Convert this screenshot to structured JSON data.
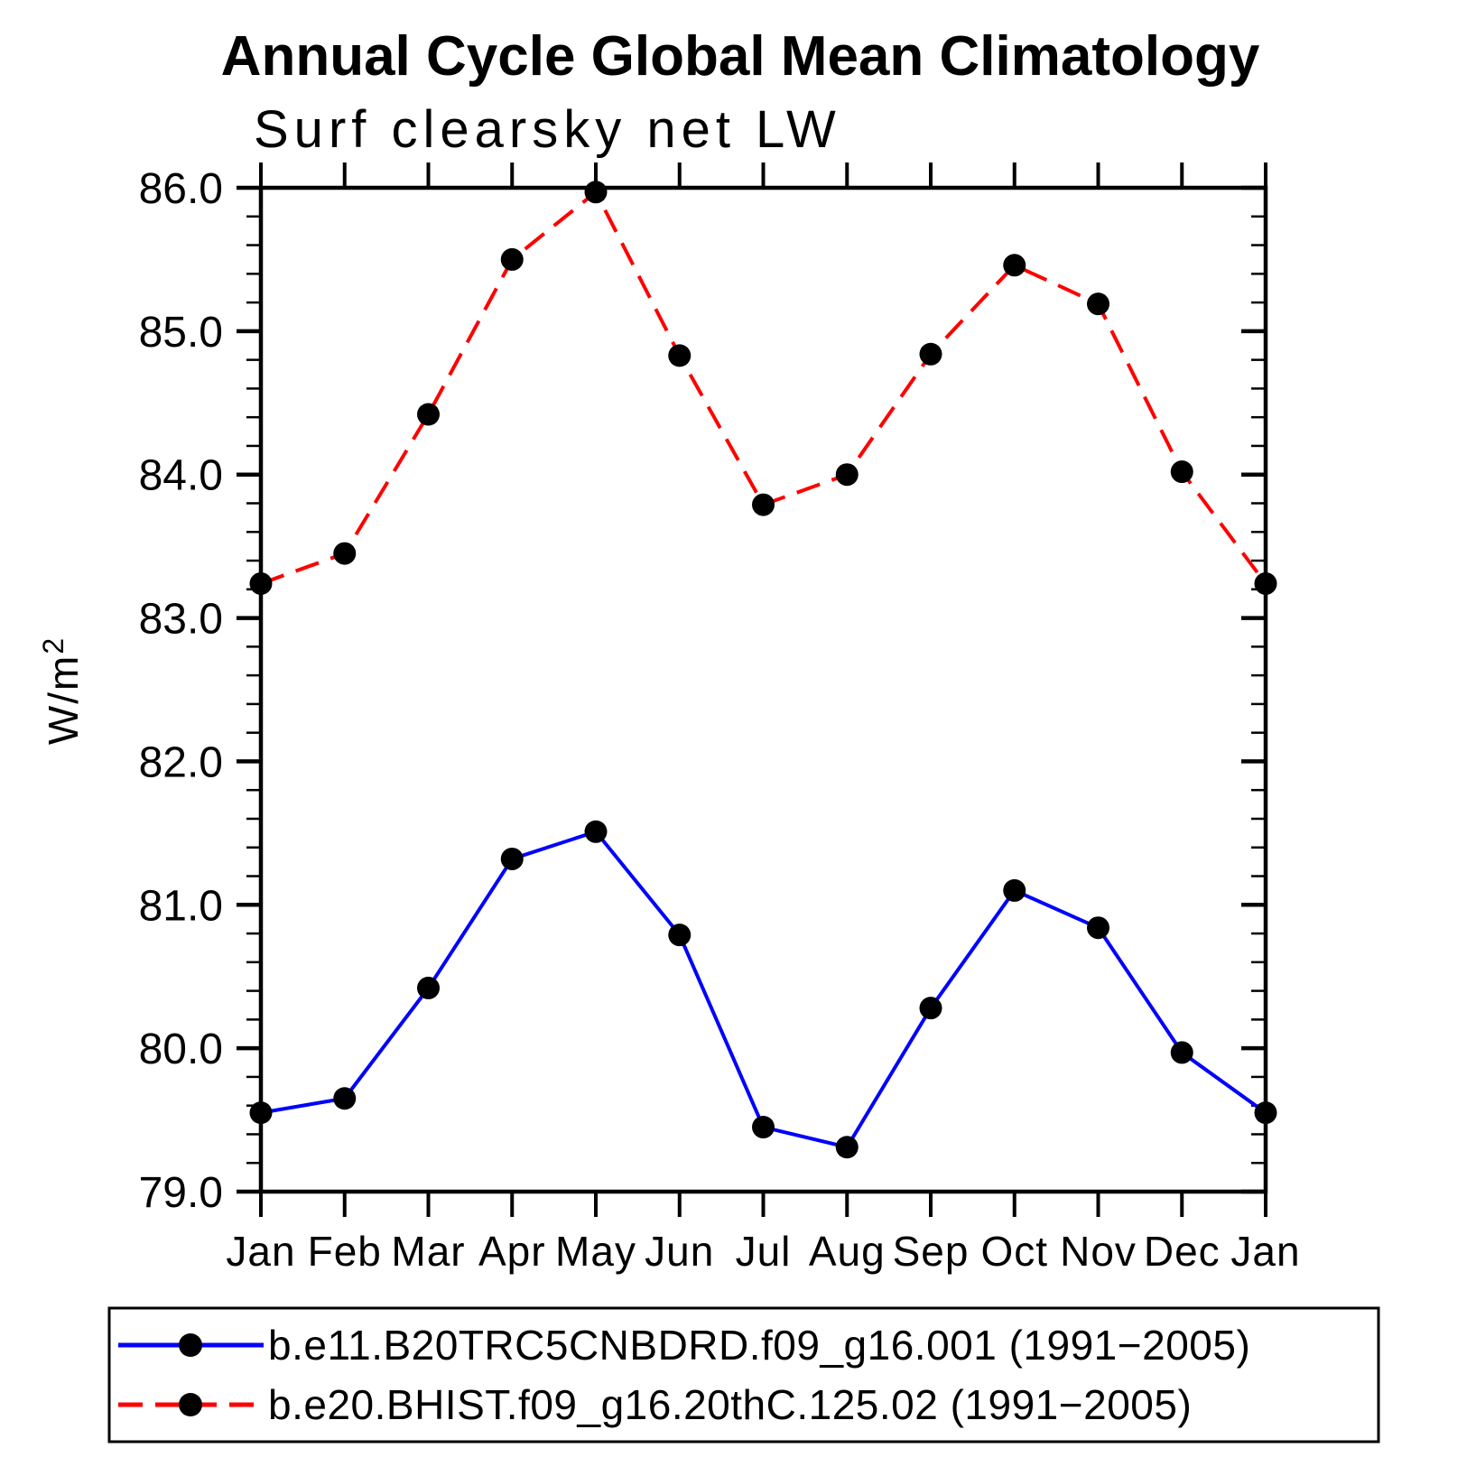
{
  "title": "Annual Cycle Global Mean Climatology",
  "subtitle": "Surf clearsky net LW",
  "chart_data": {
    "type": "line",
    "title": "Annual Cycle Global Mean Climatology",
    "subtitle": "Surf clearsky net LW",
    "xlabel": "",
    "ylabel": "W/m²",
    "ylabel_base": "W/m",
    "ylabel_exponent": "2",
    "x_tick_labels": [
      "Jan",
      "Feb",
      "Mar",
      "Apr",
      "May",
      "Jun",
      "Jul",
      "Aug",
      "Sep",
      "Oct",
      "Nov",
      "Dec",
      "Jan"
    ],
    "ylim": [
      79.0,
      86.0
    ],
    "y_major_step": 1.0,
    "y_minor_step": 0.2,
    "y_tick_values": [
      79.0,
      80.0,
      81.0,
      82.0,
      83.0,
      84.0,
      85.0,
      86.0
    ],
    "y_tick_labels": [
      "79.0",
      "80.0",
      "81.0",
      "82.0",
      "83.0",
      "84.0",
      "85.0",
      "86.0"
    ],
    "grid": false,
    "legend_position": "bottom",
    "series": [
      {
        "name": "b.e11.B20TRC5CNBDRD.f09_g16.001 (1991−2005)",
        "color": "#0000ff",
        "line_style": "solid",
        "marker": "filled-circle",
        "marker_color": "#000000",
        "values": [
          79.55,
          79.65,
          80.42,
          81.32,
          81.51,
          80.79,
          79.45,
          79.31,
          80.28,
          81.1,
          80.84,
          79.97,
          79.55
        ]
      },
      {
        "name": "b.e20.BHIST.f09_g16.20thC.125.02 (1991−2005)",
        "color": "#ff0000",
        "line_style": "dashed",
        "marker": "filled-circle",
        "marker_color": "#000000",
        "values": [
          83.24,
          83.45,
          84.42,
          85.5,
          85.97,
          84.83,
          83.79,
          84.0,
          84.84,
          85.46,
          85.19,
          84.02,
          83.24
        ]
      }
    ]
  },
  "colors": {
    "background": "#ffffff",
    "axis": "#000000",
    "text": "#000000",
    "series1": "#0000ff",
    "series2": "#ff0000",
    "marker": "#000000"
  }
}
